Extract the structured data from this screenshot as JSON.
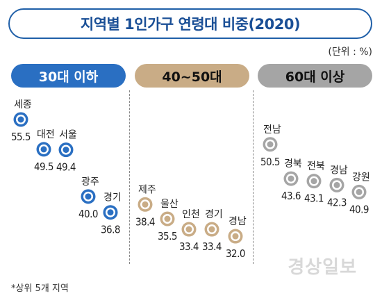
{
  "header": {
    "title": "지역별 1인가구 연령대 비중(2020)",
    "unit": "(단위 : %)"
  },
  "footnote": "*상위 5개 지역",
  "watermark": "경상일보",
  "colors": {
    "g1": "#2a6fc2",
    "g2": "#c9ac86",
    "g3": "#a5a5a5"
  },
  "chart_data": {
    "type": "scatter",
    "title": "지역별 1인가구 연령대 비중(2020)",
    "unit": "%",
    "groups": [
      {
        "name": "30대 이하",
        "color_key": "g1",
        "points": [
          {
            "region": "세종",
            "value": 55.5
          },
          {
            "region": "대전",
            "value": 49.5
          },
          {
            "region": "서울",
            "value": 49.4
          },
          {
            "region": "광주",
            "value": 40.0
          },
          {
            "region": "경기",
            "value": 36.8
          }
        ]
      },
      {
        "name": "40~50대",
        "color_key": "g2",
        "points": [
          {
            "region": "제주",
            "value": 38.4
          },
          {
            "region": "울산",
            "value": 35.5
          },
          {
            "region": "인천",
            "value": 33.4
          },
          {
            "region": "경기",
            "value": 33.4
          },
          {
            "region": "경남",
            "value": 32.0
          }
        ]
      },
      {
        "name": "60대 이상",
        "color_key": "g3",
        "points": [
          {
            "region": "전남",
            "value": 50.5
          },
          {
            "region": "경북",
            "value": 43.6
          },
          {
            "region": "전북",
            "value": 43.1
          },
          {
            "region": "경남",
            "value": 42.3
          },
          {
            "region": "강원",
            "value": 40.9
          }
        ]
      }
    ]
  }
}
